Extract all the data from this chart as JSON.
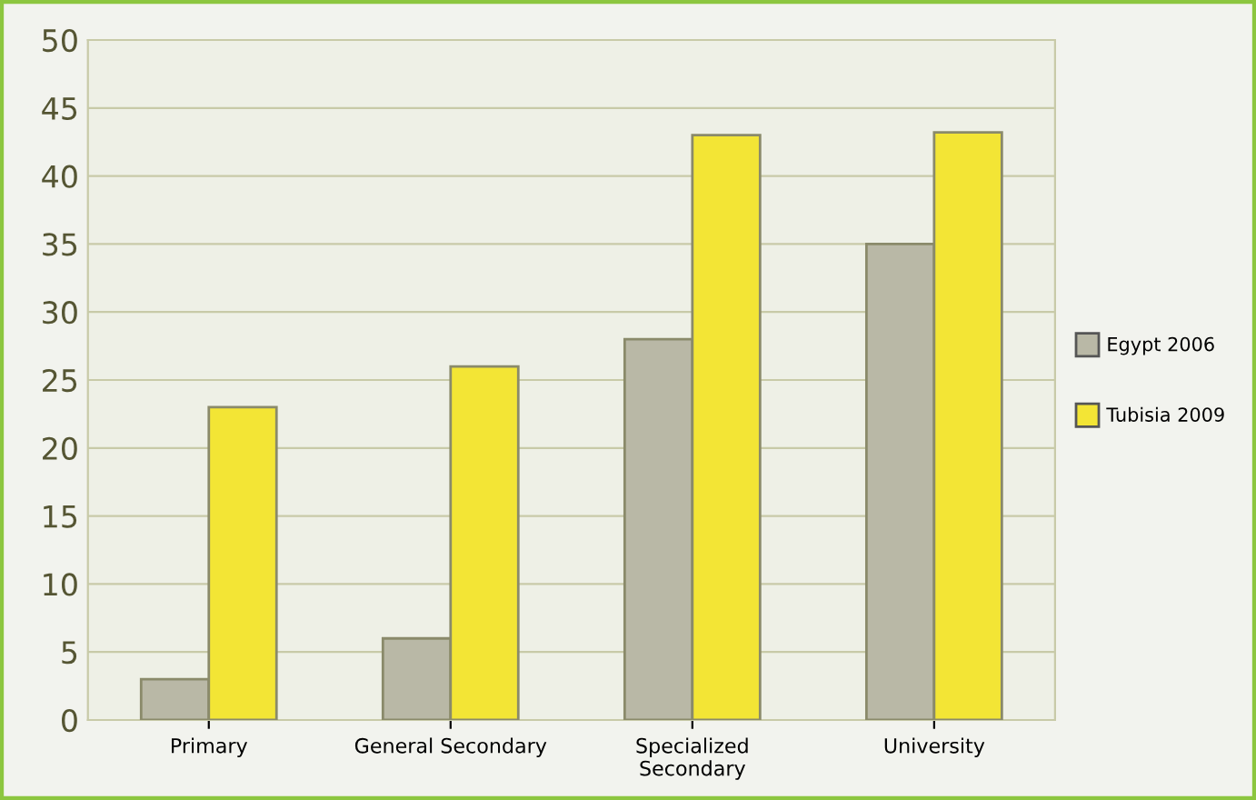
{
  "chart_data": {
    "type": "bar",
    "categories": [
      "Primary",
      "General Secondary",
      "Specialized\nSecondary",
      "University"
    ],
    "series": [
      {
        "name": "Egypt 2006",
        "color": "#b9b8a6",
        "values": [
          3,
          6,
          28,
          35
        ]
      },
      {
        "name": "Tubisia 2009",
        "color": "#f3e535",
        "values": [
          23,
          26,
          43,
          43.2
        ]
      }
    ],
    "ylim": [
      0,
      50
    ],
    "yticks": [
      0,
      5,
      10,
      15,
      20,
      25,
      30,
      35,
      40,
      45,
      50
    ],
    "grid": "y",
    "legend": "right"
  }
}
